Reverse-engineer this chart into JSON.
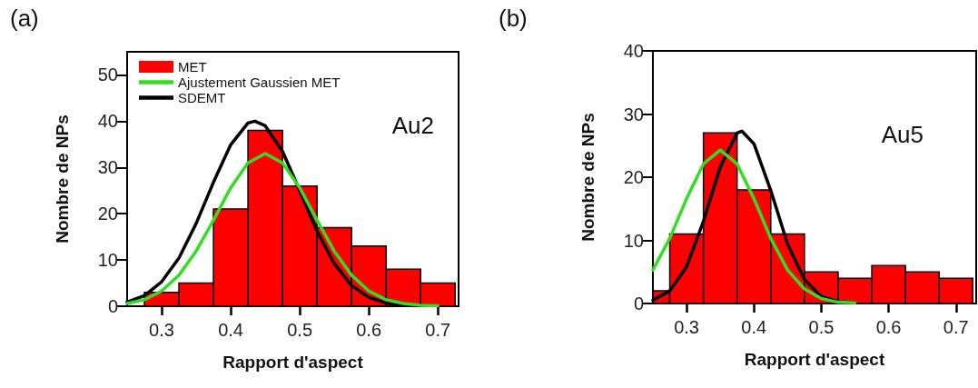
{
  "chart_data": [
    {
      "type": "histogram",
      "title": "(a)",
      "xlabel": "Rapport d'aspect",
      "ylabel": "Nombre de NPs",
      "annotations": [
        "Au2"
      ],
      "xlim": [
        0.25,
        0.73
      ],
      "xticks": [
        0.3,
        0.4,
        0.5,
        0.6,
        0.7
      ],
      "ylim": [
        0,
        55
      ],
      "yticks": [
        0,
        10,
        20,
        30,
        40,
        50
      ],
      "legend": "top left",
      "series": [
        {
          "name": "MET",
          "color": "#ff0000",
          "bins": [
            0.275,
            0.325,
            0.375,
            0.425,
            0.475,
            0.525,
            0.575,
            0.625,
            0.675,
            0.725
          ],
          "values": [
            3,
            5,
            21,
            38,
            26,
            17,
            13,
            8,
            5
          ]
        },
        {
          "type": "line",
          "name": "Ajustement Gaussien MET",
          "color": "#33dd22",
          "x": [
            0.25,
            0.275,
            0.3,
            0.325,
            0.35,
            0.375,
            0.4,
            0.425,
            0.45,
            0.475,
            0.5,
            0.525,
            0.55,
            0.575,
            0.6,
            0.625,
            0.65,
            0.675,
            0.7
          ],
          "values": [
            0.6,
            1.4,
            3.3,
            6.7,
            11.9,
            18.6,
            25.6,
            31,
            33,
            31,
            25.6,
            18.6,
            11.9,
            6.7,
            3.3,
            1.4,
            0.6,
            0.2,
            0.1
          ]
        },
        {
          "type": "line",
          "name": "SDEMT",
          "color": "#000000",
          "x": [
            0.25,
            0.275,
            0.3,
            0.325,
            0.35,
            0.375,
            0.4,
            0.425,
            0.435,
            0.45,
            0.475,
            0.5,
            0.525,
            0.55,
            0.575,
            0.6,
            0.625,
            0.65
          ],
          "values": [
            0.9,
            2.3,
            5.3,
            10.4,
            17.9,
            26.8,
            34.9,
            39.6,
            40,
            39,
            33.5,
            25,
            16.2,
            9.2,
            4.5,
            1.9,
            0.7,
            0.2
          ]
        }
      ]
    },
    {
      "type": "histogram",
      "title": "(b)",
      "xlabel": "Rapport d'aspect",
      "ylabel": "Nombre de NPs",
      "annotations": [
        "Au5"
      ],
      "xlim": [
        0.25,
        0.73
      ],
      "xticks": [
        0.3,
        0.4,
        0.5,
        0.6,
        0.7
      ],
      "ylim": [
        0,
        40
      ],
      "yticks": [
        0,
        10,
        20,
        30,
        40
      ],
      "series": [
        {
          "color": "#ff0000",
          "bins": [
            0.25,
            0.275,
            0.325,
            0.375,
            0.425,
            0.475,
            0.525,
            0.575,
            0.625,
            0.675,
            0.725
          ],
          "values": [
            2,
            11,
            27,
            18,
            11,
            5,
            4,
            6,
            5,
            4
          ]
        },
        {
          "type": "line",
          "color": "#33dd22",
          "x": [
            0.25,
            0.275,
            0.3,
            0.325,
            0.35,
            0.375,
            0.4,
            0.425,
            0.45,
            0.475,
            0.5,
            0.525,
            0.55
          ],
          "values": [
            5.3,
            10.3,
            16.6,
            22.1,
            24.3,
            22.1,
            16.6,
            10.3,
            5.3,
            2.3,
            0.8,
            0.2,
            0.1
          ]
        },
        {
          "type": "line",
          "color": "#000000",
          "x": [
            0.25,
            0.275,
            0.3,
            0.325,
            0.35,
            0.375,
            0.382,
            0.4,
            0.425,
            0.45,
            0.475,
            0.5,
            0.525,
            0.55
          ],
          "values": [
            0.5,
            2,
            5.8,
            13,
            21.6,
            27,
            27.3,
            25.3,
            17.9,
            9.4,
            3.8,
            1.1,
            0.3,
            0.1
          ]
        }
      ]
    }
  ]
}
